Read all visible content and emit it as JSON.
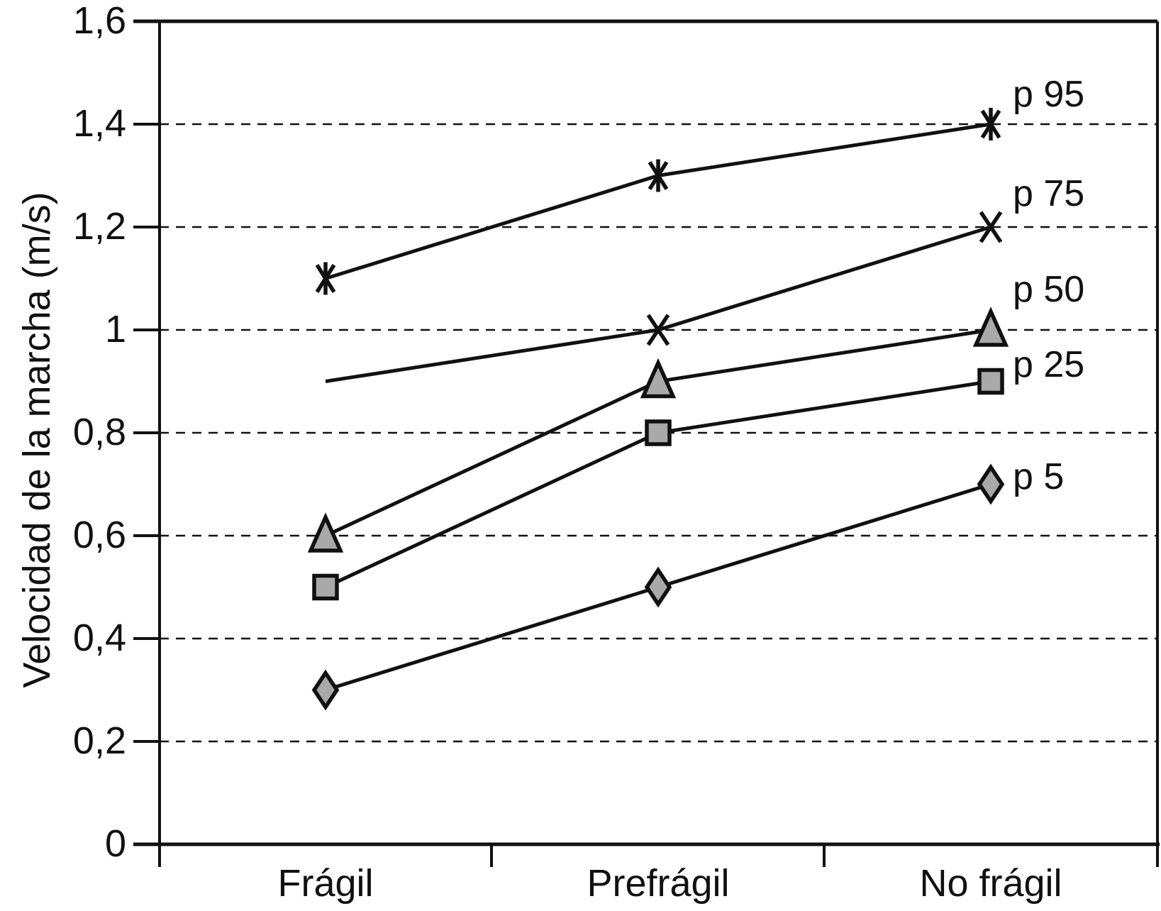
{
  "chart_data": {
    "type": "line",
    "title": "",
    "xlabel": "",
    "ylabel": "Velocidad de la marcha (m/s)",
    "categories": [
      "Frágil",
      "Prefrágil",
      "No frágil"
    ],
    "ylim": [
      0,
      1.6
    ],
    "yticks": [
      {
        "value": 0,
        "label": "0"
      },
      {
        "value": 0.2,
        "label": "0,2"
      },
      {
        "value": 0.4,
        "label": "0,4"
      },
      {
        "value": 0.6,
        "label": "0,6"
      },
      {
        "value": 0.8,
        "label": "0,8"
      },
      {
        "value": 1.0,
        "label": "1"
      },
      {
        "value": 1.2,
        "label": "1,2"
      },
      {
        "value": 1.4,
        "label": "1,4"
      },
      {
        "value": 1.6,
        "label": "1,6"
      }
    ],
    "gridlines": {
      "style": "dashed",
      "orientation": "horizontal",
      "at": [
        0.2,
        0.4,
        0.6,
        0.8,
        1.0,
        1.2,
        1.4
      ]
    },
    "legend_position": "labels-right-of-last-point",
    "series": [
      {
        "name": "p 95",
        "marker": "asterisk",
        "values": [
          1.1,
          1.3,
          1.4
        ],
        "marker_visible": [
          true,
          true,
          true
        ]
      },
      {
        "name": "p 75",
        "marker": "x-cross",
        "values": [
          0.9,
          1.0,
          1.2
        ],
        "marker_visible": [
          false,
          true,
          true
        ]
      },
      {
        "name": "p 50",
        "marker": "triangle",
        "values": [
          0.6,
          0.9,
          1.0
        ],
        "marker_visible": [
          true,
          true,
          true
        ]
      },
      {
        "name": "p 25",
        "marker": "square",
        "values": [
          0.5,
          0.8,
          0.9
        ],
        "marker_visible": [
          true,
          true,
          true
        ]
      },
      {
        "name": "p 5",
        "marker": "diamond",
        "values": [
          0.3,
          0.5,
          0.7
        ],
        "marker_visible": [
          true,
          true,
          true
        ]
      }
    ],
    "colors": {
      "stroke": "#111111",
      "marker_fill": "#a9a9a9",
      "background": "#ffffff"
    }
  }
}
